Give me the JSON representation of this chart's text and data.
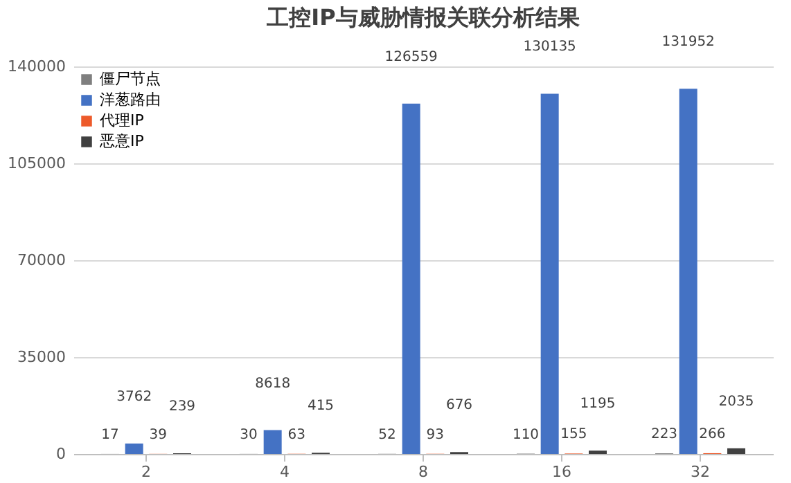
{
  "chart_data": {
    "type": "bar",
    "title": "工控IP与威胁情报关联分析结果",
    "categories": [
      "2",
      "4",
      "8",
      "16",
      "32"
    ],
    "series": [
      {
        "name": "僵尸节点",
        "color": "#7f7f7f",
        "values": [
          17,
          30,
          52,
          110,
          223
        ]
      },
      {
        "name": "洋葱路由",
        "color": "#4472c4",
        "values": [
          3762,
          8618,
          126559,
          130135,
          131952
        ]
      },
      {
        "name": "代理IP",
        "color": "#ed5a2a",
        "values": [
          39,
          63,
          93,
          155,
          266
        ]
      },
      {
        "name": "恶意IP",
        "color": "#404040",
        "values": [
          239,
          415,
          676,
          1195,
          2035
        ]
      }
    ],
    "ylim": [
      0,
      140000
    ],
    "yticks": [
      0,
      35000,
      70000,
      105000,
      140000
    ],
    "grid": "y",
    "legend": "top left",
    "data_labels": true
  }
}
